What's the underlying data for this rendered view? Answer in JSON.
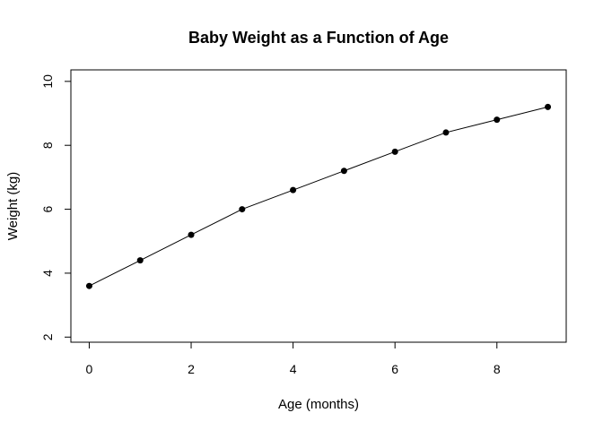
{
  "chart_data": {
    "type": "line",
    "title": "Baby Weight as a Function of Age",
    "xlabel": "Age (months)",
    "ylabel": "Weight (kg)",
    "x": [
      0,
      1,
      2,
      3,
      4,
      5,
      6,
      7,
      8,
      9
    ],
    "y": [
      3.6,
      4.4,
      5.2,
      6.0,
      6.6,
      7.2,
      7.8,
      8.4,
      8.8,
      9.2
    ],
    "xlim": [
      -0.36,
      9.36
    ],
    "ylim": [
      1.84,
      10.36
    ],
    "xticks": [
      0,
      2,
      4,
      6,
      8
    ],
    "yticks": [
      2,
      4,
      6,
      8,
      10
    ],
    "grid": false,
    "legend": "none",
    "markers": "filled-circle",
    "line_color": "#000000"
  }
}
